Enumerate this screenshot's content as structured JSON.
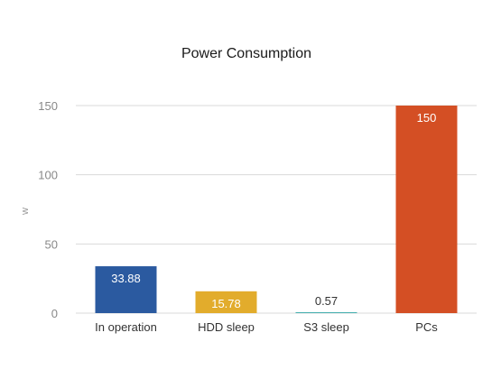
{
  "chart_data": {
    "type": "bar",
    "title": "Power Consumption",
    "xlabel": "",
    "ylabel": "w",
    "ylim": [
      0,
      150
    ],
    "yticks": [
      0,
      50,
      100,
      150
    ],
    "grid": true,
    "legend": "none",
    "categories": [
      "In operation",
      "HDD sleep",
      "S3 sleep",
      "PCs"
    ],
    "values": [
      33.88,
      15.78,
      0.57,
      150
    ],
    "data_labels": [
      "33.88",
      "15.78",
      "0.57",
      "150"
    ],
    "colors": [
      "#2b5aa0",
      "#e2ac2c",
      "#2aa3a3",
      "#d44f24"
    ],
    "label_colors": [
      "#ffffff",
      "#ffffff",
      "#333333",
      "#ffffff"
    ],
    "gridline_color": "#d9d9d9"
  }
}
